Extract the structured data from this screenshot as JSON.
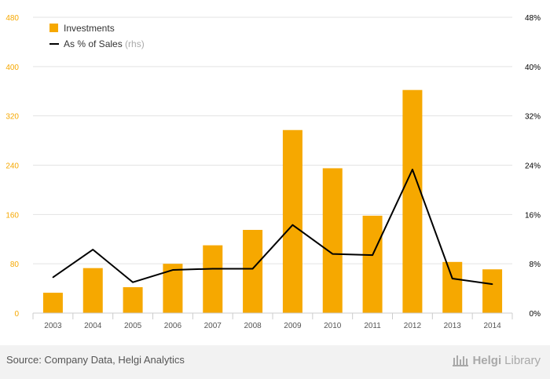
{
  "chart_data": {
    "type": "bar+line",
    "categories": [
      "2003",
      "2004",
      "2005",
      "2006",
      "2007",
      "2008",
      "2009",
      "2010",
      "2011",
      "2012",
      "2013",
      "2014"
    ],
    "series": [
      {
        "name": "Investments",
        "type": "bar",
        "axis": "left",
        "color": "#f6a800",
        "values": [
          33,
          73,
          42,
          80,
          110,
          135,
          297,
          235,
          158,
          362,
          83,
          71
        ]
      },
      {
        "name": "As % of Sales",
        "name_suffix": "(rhs)",
        "type": "line",
        "axis": "right",
        "color": "#000000",
        "values": [
          5.8,
          10.3,
          5.0,
          7.0,
          7.2,
          7.2,
          14.3,
          9.6,
          9.4,
          23.3,
          5.6,
          4.7
        ]
      }
    ],
    "y_left": {
      "min": 0,
      "max": 480,
      "ticks": [
        "0",
        "80",
        "160",
        "240",
        "320",
        "400",
        "480"
      ],
      "color": "#f6a800"
    },
    "y_right": {
      "min": 0,
      "max": 48,
      "ticks": [
        "0%",
        "8%",
        "16%",
        "24%",
        "32%",
        "40%",
        "48%"
      ],
      "color": "#000000"
    },
    "legend_position": "top-left",
    "grid": true
  },
  "footer": {
    "source": "Source: Company Data, Helgi Analytics",
    "logo_brand": "Helgi",
    "logo_suffix": "Library"
  }
}
